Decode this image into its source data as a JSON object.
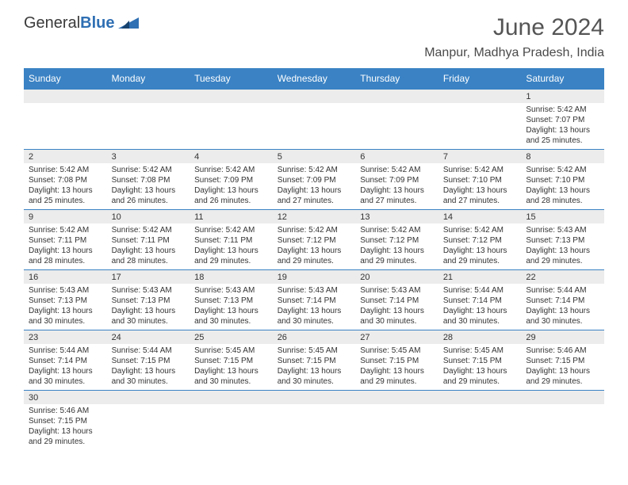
{
  "brand": {
    "part1": "General",
    "part2": "Blue"
  },
  "title": "June 2024",
  "location": "Manpur, Madhya Pradesh, India",
  "colors": {
    "header_bg": "#3a82c4",
    "header_text": "#ffffff",
    "num_bg": "#ececec",
    "row_border": "#3a82c4",
    "text": "#333333",
    "title_color": "#555555"
  },
  "typography": {
    "title_fontsize": 30,
    "location_fontsize": 16,
    "dayhead_fontsize": 12,
    "daynum_fontsize": 11,
    "detail_fontsize": 10
  },
  "day_headers": [
    "Sunday",
    "Monday",
    "Tuesday",
    "Wednesday",
    "Thursday",
    "Friday",
    "Saturday"
  ],
  "weeks": [
    {
      "nums": [
        "",
        "",
        "",
        "",
        "",
        "",
        "1"
      ],
      "details": [
        "",
        "",
        "",
        "",
        "",
        "",
        "Sunrise: 5:42 AM\nSunset: 7:07 PM\nDaylight: 13 hours and 25 minutes."
      ]
    },
    {
      "nums": [
        "2",
        "3",
        "4",
        "5",
        "6",
        "7",
        "8"
      ],
      "details": [
        "Sunrise: 5:42 AM\nSunset: 7:08 PM\nDaylight: 13 hours and 25 minutes.",
        "Sunrise: 5:42 AM\nSunset: 7:08 PM\nDaylight: 13 hours and 26 minutes.",
        "Sunrise: 5:42 AM\nSunset: 7:09 PM\nDaylight: 13 hours and 26 minutes.",
        "Sunrise: 5:42 AM\nSunset: 7:09 PM\nDaylight: 13 hours and 27 minutes.",
        "Sunrise: 5:42 AM\nSunset: 7:09 PM\nDaylight: 13 hours and 27 minutes.",
        "Sunrise: 5:42 AM\nSunset: 7:10 PM\nDaylight: 13 hours and 27 minutes.",
        "Sunrise: 5:42 AM\nSunset: 7:10 PM\nDaylight: 13 hours and 28 minutes."
      ]
    },
    {
      "nums": [
        "9",
        "10",
        "11",
        "12",
        "13",
        "14",
        "15"
      ],
      "details": [
        "Sunrise: 5:42 AM\nSunset: 7:11 PM\nDaylight: 13 hours and 28 minutes.",
        "Sunrise: 5:42 AM\nSunset: 7:11 PM\nDaylight: 13 hours and 28 minutes.",
        "Sunrise: 5:42 AM\nSunset: 7:11 PM\nDaylight: 13 hours and 29 minutes.",
        "Sunrise: 5:42 AM\nSunset: 7:12 PM\nDaylight: 13 hours and 29 minutes.",
        "Sunrise: 5:42 AM\nSunset: 7:12 PM\nDaylight: 13 hours and 29 minutes.",
        "Sunrise: 5:42 AM\nSunset: 7:12 PM\nDaylight: 13 hours and 29 minutes.",
        "Sunrise: 5:43 AM\nSunset: 7:13 PM\nDaylight: 13 hours and 29 minutes."
      ]
    },
    {
      "nums": [
        "16",
        "17",
        "18",
        "19",
        "20",
        "21",
        "22"
      ],
      "details": [
        "Sunrise: 5:43 AM\nSunset: 7:13 PM\nDaylight: 13 hours and 30 minutes.",
        "Sunrise: 5:43 AM\nSunset: 7:13 PM\nDaylight: 13 hours and 30 minutes.",
        "Sunrise: 5:43 AM\nSunset: 7:13 PM\nDaylight: 13 hours and 30 minutes.",
        "Sunrise: 5:43 AM\nSunset: 7:14 PM\nDaylight: 13 hours and 30 minutes.",
        "Sunrise: 5:43 AM\nSunset: 7:14 PM\nDaylight: 13 hours and 30 minutes.",
        "Sunrise: 5:44 AM\nSunset: 7:14 PM\nDaylight: 13 hours and 30 minutes.",
        "Sunrise: 5:44 AM\nSunset: 7:14 PM\nDaylight: 13 hours and 30 minutes."
      ]
    },
    {
      "nums": [
        "23",
        "24",
        "25",
        "26",
        "27",
        "28",
        "29"
      ],
      "details": [
        "Sunrise: 5:44 AM\nSunset: 7:14 PM\nDaylight: 13 hours and 30 minutes.",
        "Sunrise: 5:44 AM\nSunset: 7:15 PM\nDaylight: 13 hours and 30 minutes.",
        "Sunrise: 5:45 AM\nSunset: 7:15 PM\nDaylight: 13 hours and 30 minutes.",
        "Sunrise: 5:45 AM\nSunset: 7:15 PM\nDaylight: 13 hours and 30 minutes.",
        "Sunrise: 5:45 AM\nSunset: 7:15 PM\nDaylight: 13 hours and 29 minutes.",
        "Sunrise: 5:45 AM\nSunset: 7:15 PM\nDaylight: 13 hours and 29 minutes.",
        "Sunrise: 5:46 AM\nSunset: 7:15 PM\nDaylight: 13 hours and 29 minutes."
      ]
    },
    {
      "nums": [
        "30",
        "",
        "",
        "",
        "",
        "",
        ""
      ],
      "details": [
        "Sunrise: 5:46 AM\nSunset: 7:15 PM\nDaylight: 13 hours and 29 minutes.",
        "",
        "",
        "",
        "",
        "",
        ""
      ]
    }
  ]
}
